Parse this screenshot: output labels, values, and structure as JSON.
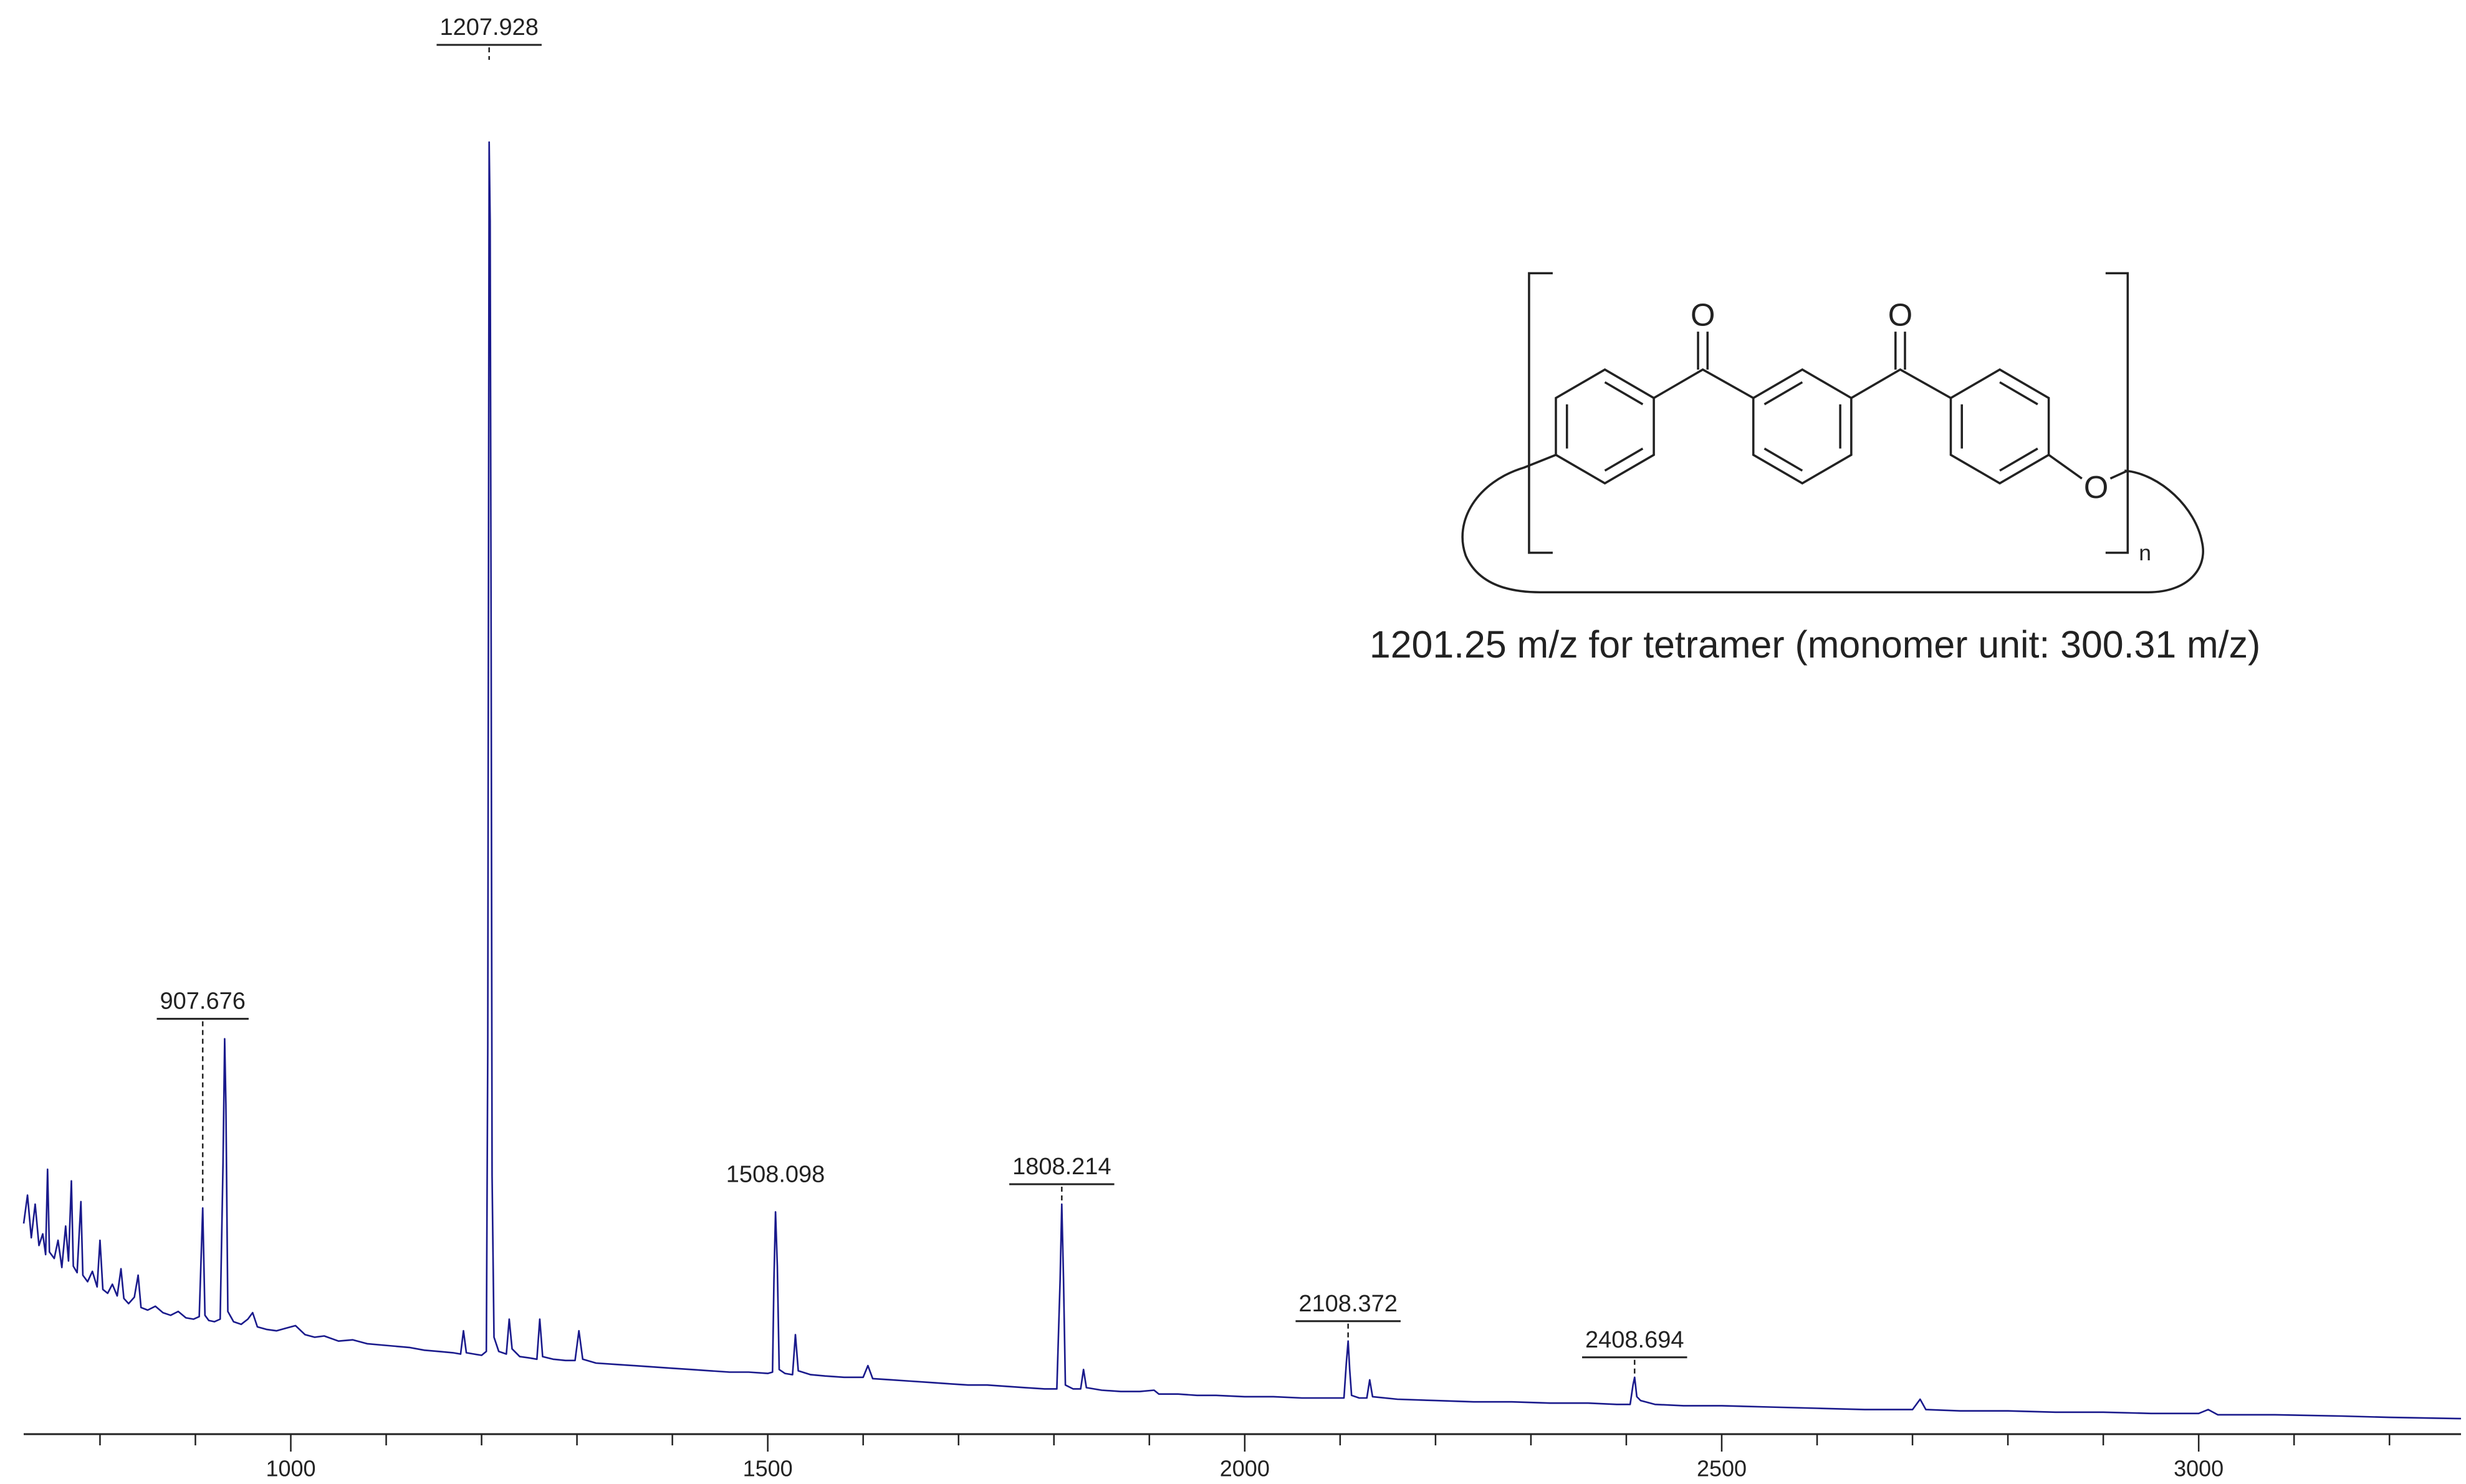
{
  "chart_data": {
    "type": "line",
    "color": "#1a1a8c",
    "xlim": [
      720,
      3275
    ],
    "ylim": [
      0,
      100
    ],
    "xticks": [
      1000,
      1500,
      2000,
      2500,
      3000
    ],
    "xminorticks": [
      800,
      900,
      1100,
      1200,
      1300,
      1400,
      1600,
      1700,
      1800,
      1900,
      2100,
      2200,
      2300,
      2400,
      2600,
      2700,
      2800,
      2900,
      3100,
      3200
    ],
    "x": [
      720,
      724,
      728,
      732,
      736,
      740,
      743,
      745,
      747,
      752,
      756,
      760,
      764,
      767,
      770,
      772,
      776,
      780,
      782,
      787,
      792,
      797,
      800,
      803,
      808,
      813,
      818,
      822,
      825,
      830,
      836,
      840,
      843,
      850,
      858,
      866,
      874,
      882,
      890,
      898,
      904,
      907.676,
      910,
      914,
      920,
      926,
      929,
      930.7,
      932,
      934,
      940,
      948,
      955,
      960,
      965,
      975,
      985,
      995,
      1005,
      1015,
      1025,
      1035,
      1050,
      1065,
      1080,
      1095,
      1110,
      1125,
      1140,
      1155,
      1170,
      1178,
      1181,
      1184,
      1192,
      1200,
      1205,
      1206.5,
      1207.928,
      1209,
      1210,
      1211,
      1213,
      1218,
      1226,
      1229,
      1232,
      1240,
      1250,
      1258,
      1261,
      1264,
      1275,
      1288,
      1298,
      1302,
      1306,
      1320,
      1340,
      1360,
      1380,
      1400,
      1420,
      1440,
      1460,
      1480,
      1500,
      1505,
      1506.5,
      1508.098,
      1510,
      1512,
      1518,
      1526,
      1529,
      1532,
      1545,
      1560,
      1580,
      1600,
      1605,
      1610,
      1630,
      1650,
      1670,
      1690,
      1710,
      1730,
      1750,
      1770,
      1790,
      1803,
      1806.5,
      1808.214,
      1810,
      1812,
      1820,
      1828,
      1831,
      1834,
      1850,
      1870,
      1890,
      1905,
      1910,
      1930,
      1950,
      1970,
      2000,
      2030,
      2060,
      2090,
      2104,
      2106.5,
      2108.372,
      2110,
      2112,
      2120,
      2128,
      2131,
      2134,
      2160,
      2200,
      2240,
      2280,
      2320,
      2360,
      2390,
      2404,
      2407,
      2408.694,
      2411,
      2415,
      2430,
      2460,
      2500,
      2550,
      2600,
      2650,
      2700,
      2708,
      2714,
      2750,
      2800,
      2850,
      2900,
      2950,
      3000,
      3010,
      3020,
      3080,
      3150,
      3200,
      3275
    ],
    "values": [
      16.3,
      18.5,
      15.2,
      17.8,
      14.6,
      15.5,
      13.9,
      20.5,
      14.1,
      13.6,
      15.0,
      12.9,
      16.1,
      13.4,
      19.6,
      13.0,
      12.5,
      18.0,
      12.3,
      11.8,
      12.6,
      11.4,
      15.0,
      11.2,
      10.9,
      11.6,
      10.7,
      12.8,
      10.5,
      10.1,
      10.6,
      12.3,
      9.8,
      9.6,
      9.9,
      9.4,
      9.2,
      9.5,
      9.0,
      8.9,
      9.1,
      17.5,
      9.2,
      8.8,
      8.7,
      8.9,
      21.0,
      30.6,
      25.5,
      9.5,
      8.7,
      8.5,
      8.9,
      9.4,
      8.3,
      8.1,
      8.0,
      8.2,
      8.4,
      7.7,
      7.5,
      7.6,
      7.2,
      7.3,
      7.0,
      6.9,
      6.8,
      6.7,
      6.5,
      6.4,
      6.3,
      6.2,
      8.0,
      6.3,
      6.2,
      6.1,
      6.4,
      30,
      100,
      93.9,
      61,
      20,
      7.5,
      6.4,
      6.2,
      8.9,
      6.6,
      6.0,
      5.9,
      5.8,
      8.9,
      6.0,
      5.8,
      5.7,
      5.7,
      8.0,
      5.8,
      5.5,
      5.4,
      5.3,
      5.2,
      5.1,
      5.0,
      4.9,
      4.8,
      4.8,
      4.7,
      4.8,
      12,
      17.2,
      13.0,
      5.0,
      4.7,
      4.6,
      7.7,
      4.9,
      4.6,
      4.5,
      4.4,
      4.4,
      5.3,
      4.3,
      4.2,
      4.1,
      4.0,
      3.9,
      3.8,
      3.8,
      3.7,
      3.6,
      3.5,
      3.5,
      12,
      17.8,
      12.0,
      3.8,
      3.5,
      3.5,
      5.0,
      3.6,
      3.4,
      3.3,
      3.3,
      3.4,
      3.1,
      3.1,
      3.0,
      3.0,
      2.9,
      2.9,
      2.8,
      2.8,
      2.8,
      5.5,
      7.2,
      5.0,
      3.0,
      2.8,
      2.8,
      4.2,
      2.9,
      2.7,
      2.6,
      2.5,
      2.5,
      2.4,
      2.4,
      2.3,
      2.3,
      3.8,
      4.4,
      2.9,
      2.6,
      2.3,
      2.2,
      2.2,
      2.1,
      2.0,
      1.9,
      1.9,
      2.7,
      1.9,
      1.8,
      1.8,
      1.7,
      1.7,
      1.6,
      1.6,
      1.9,
      1.5,
      1.5,
      1.4,
      1.3,
      1.2
    ],
    "peak_labels": [
      {
        "x": 907.676,
        "underline": true
      },
      {
        "x": 1207.928,
        "underline": true
      },
      {
        "x": 1508.098,
        "underline": false
      },
      {
        "x": 1808.214,
        "underline": true
      },
      {
        "x": 2108.372,
        "underline": true
      },
      {
        "x": 2408.694,
        "underline": true
      }
    ],
    "structure_labels": [
      "O",
      "O",
      "O",
      "n"
    ],
    "annotation": "1201.25 m/z for tetramer (monomer unit: 300.31 m/z)"
  }
}
